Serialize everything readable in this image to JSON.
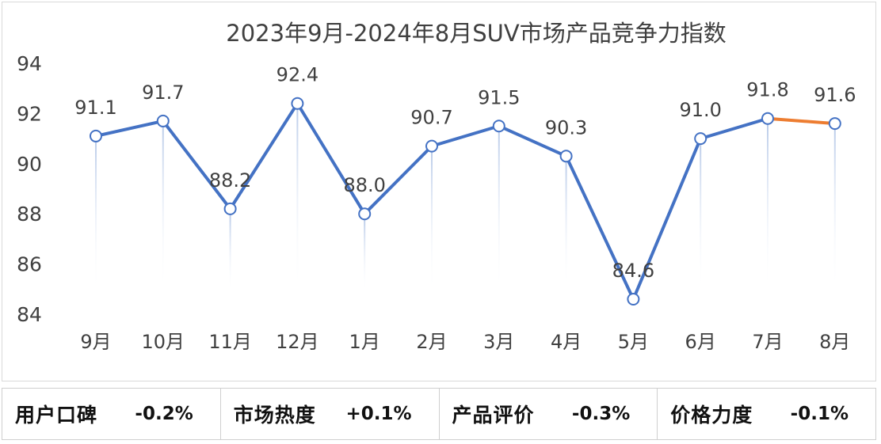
{
  "chart_data": {
    "type": "line",
    "title": "2023年9月-2024年8月SUV市场产品竞争力指数",
    "xlabel": "",
    "ylabel": "",
    "categories": [
      "9月",
      "10月",
      "11月",
      "12月",
      "1月",
      "2月",
      "3月",
      "4月",
      "5月",
      "6月",
      "7月",
      "8月"
    ],
    "values": [
      91.1,
      91.7,
      88.2,
      92.4,
      88.0,
      90.7,
      91.5,
      90.3,
      84.6,
      91.0,
      91.8,
      91.6
    ],
    "value_labels": [
      "91.1",
      "91.7",
      "88.2",
      "92.4",
      "88.0",
      "90.7",
      "91.5",
      "90.3",
      "84.6",
      "91.0",
      "91.8",
      "91.6"
    ],
    "ylim": [
      84,
      94
    ],
    "y_ticks": [
      "84",
      "86",
      "88",
      "90",
      "92",
      "94"
    ],
    "grid": false,
    "legend": "none",
    "line_color": "#4472c4",
    "last_segment_color": "#ed7d31"
  },
  "metrics": [
    {
      "label": "用户口碑",
      "value": "-0.2%"
    },
    {
      "label": "市场热度",
      "value": "+0.1%"
    },
    {
      "label": "产品评价",
      "value": "-0.3%"
    },
    {
      "label": "价格力度",
      "value": "-0.1%"
    }
  ]
}
